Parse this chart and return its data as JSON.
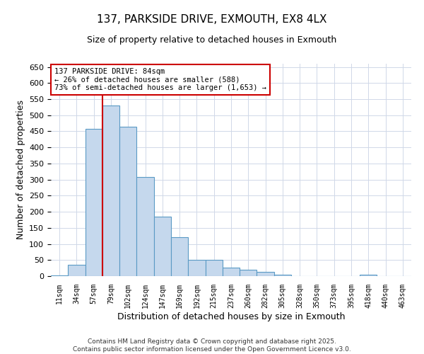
{
  "title": "137, PARKSIDE DRIVE, EXMOUTH, EX8 4LX",
  "subtitle": "Size of property relative to detached houses in Exmouth",
  "xlabel": "Distribution of detached houses by size in Exmouth",
  "ylabel": "Number of detached properties",
  "bar_labels": [
    "11sqm",
    "34sqm",
    "57sqm",
    "79sqm",
    "102sqm",
    "124sqm",
    "147sqm",
    "169sqm",
    "192sqm",
    "215sqm",
    "237sqm",
    "260sqm",
    "282sqm",
    "305sqm",
    "328sqm",
    "350sqm",
    "373sqm",
    "395sqm",
    "418sqm",
    "440sqm",
    "463sqm"
  ],
  "bar_values": [
    3,
    35,
    458,
    530,
    465,
    307,
    185,
    122,
    50,
    50,
    27,
    20,
    13,
    5,
    0,
    0,
    0,
    0,
    5,
    0,
    0
  ],
  "bar_color": "#c5d8ed",
  "bar_edge_color": "#5a9ac5",
  "ylim": [
    0,
    660
  ],
  "yticks": [
    0,
    50,
    100,
    150,
    200,
    250,
    300,
    350,
    400,
    450,
    500,
    550,
    600,
    650
  ],
  "vline_index": 3,
  "vline_color": "#cc0000",
  "annotation_title": "137 PARKSIDE DRIVE: 84sqm",
  "annotation_line1": "← 26% of detached houses are smaller (588)",
  "annotation_line2": "73% of semi-detached houses are larger (1,653) →",
  "annotation_box_color": "#cc0000",
  "footer1": "Contains HM Land Registry data © Crown copyright and database right 2025.",
  "footer2": "Contains public sector information licensed under the Open Government Licence v3.0.",
  "background_color": "#ffffff",
  "grid_color": "#d0d8e8"
}
